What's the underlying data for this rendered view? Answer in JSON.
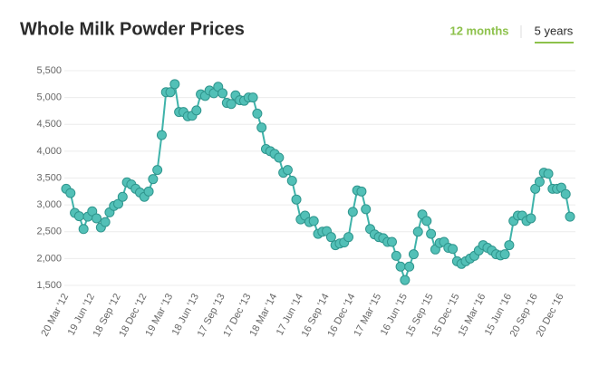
{
  "header": {
    "title": "Whole Milk Powder Prices"
  },
  "tabs": [
    "12 months",
    "5 years"
  ],
  "active_tab": 1,
  "chart_data": {
    "type": "line",
    "categories": [
      "20 Mar '12",
      null,
      null,
      null,
      null,
      null,
      "19 Jun '12",
      null,
      null,
      null,
      null,
      null,
      "18 Sep '12",
      null,
      null,
      null,
      null,
      null,
      "18 Dec '12",
      null,
      null,
      null,
      null,
      null,
      "19 Mar '13",
      null,
      null,
      null,
      null,
      null,
      "18 Jun '13",
      null,
      null,
      null,
      null,
      null,
      "17 Sep '13",
      null,
      null,
      null,
      null,
      null,
      "17 Dec '13",
      null,
      null,
      null,
      null,
      null,
      "18 Mar '14",
      null,
      null,
      null,
      null,
      null,
      "17 Jun '14",
      null,
      null,
      null,
      null,
      null,
      "16 Sep '14",
      null,
      null,
      null,
      null,
      null,
      "16 Dec '14",
      null,
      null,
      null,
      null,
      null,
      "17 Mar '15",
      null,
      null,
      null,
      null,
      null,
      "16 Jun '15",
      null,
      null,
      null,
      null,
      null,
      "15 Sep '15",
      null,
      null,
      null,
      null,
      null,
      "15 Dec '15",
      null,
      null,
      null,
      null,
      null,
      "15 Mar '16",
      null,
      null,
      null,
      null,
      null,
      "15 Jun '16",
      null,
      null,
      null,
      null,
      null,
      "20 Sep '16",
      null,
      null,
      null,
      null,
      null,
      "20 Dec '16",
      null,
      null
    ],
    "values": [
      3300,
      3220,
      2850,
      2790,
      2550,
      2780,
      2880,
      2750,
      2580,
      2680,
      2860,
      2980,
      3020,
      3150,
      3420,
      3380,
      3300,
      3230,
      3150,
      3250,
      3480,
      3650,
      4300,
      5100,
      5100,
      5250,
      4730,
      4730,
      4650,
      4660,
      4760,
      5060,
      5030,
      5130,
      5080,
      5200,
      5080,
      4900,
      4880,
      5040,
      4950,
      4940,
      5000,
      5000,
      4700,
      4440,
      4040,
      4000,
      3950,
      3880,
      3600,
      3650,
      3450,
      3100,
      2730,
      2800,
      2680,
      2700,
      2460,
      2500,
      2510,
      2400,
      2250,
      2280,
      2300,
      2400,
      2870,
      3270,
      3250,
      2920,
      2550,
      2450,
      2400,
      2380,
      2310,
      2310,
      2050,
      1850,
      1600,
      1850,
      2080,
      2500,
      2820,
      2700,
      2460,
      2170,
      2290,
      2310,
      2200,
      2180,
      1950,
      1900,
      1950,
      2000,
      2050,
      2150,
      2250,
      2200,
      2150,
      2080,
      2060,
      2080,
      2250,
      2700,
      2800,
      2800,
      2700,
      2750,
      3300,
      3430,
      3600,
      3580,
      3300,
      3300,
      3320,
      3200,
      2780
    ],
    "color": "#3fb3aa",
    "marker_color": "#52c0b7",
    "ylim": [
      1500,
      5500
    ],
    "yticks": [
      {
        "value": 1500,
        "label": "1,500"
      },
      {
        "value": 2000,
        "label": "2,000"
      },
      {
        "value": 2500,
        "label": "2,500"
      },
      {
        "value": 3000,
        "label": "3,000"
      },
      {
        "value": 3500,
        "label": "3,500"
      },
      {
        "value": 4000,
        "label": "4,000"
      },
      {
        "value": 4500,
        "label": "4,500"
      },
      {
        "value": 5000,
        "label": "5,000"
      },
      {
        "value": 5500,
        "label": "5,500"
      }
    ],
    "grid": true
  }
}
